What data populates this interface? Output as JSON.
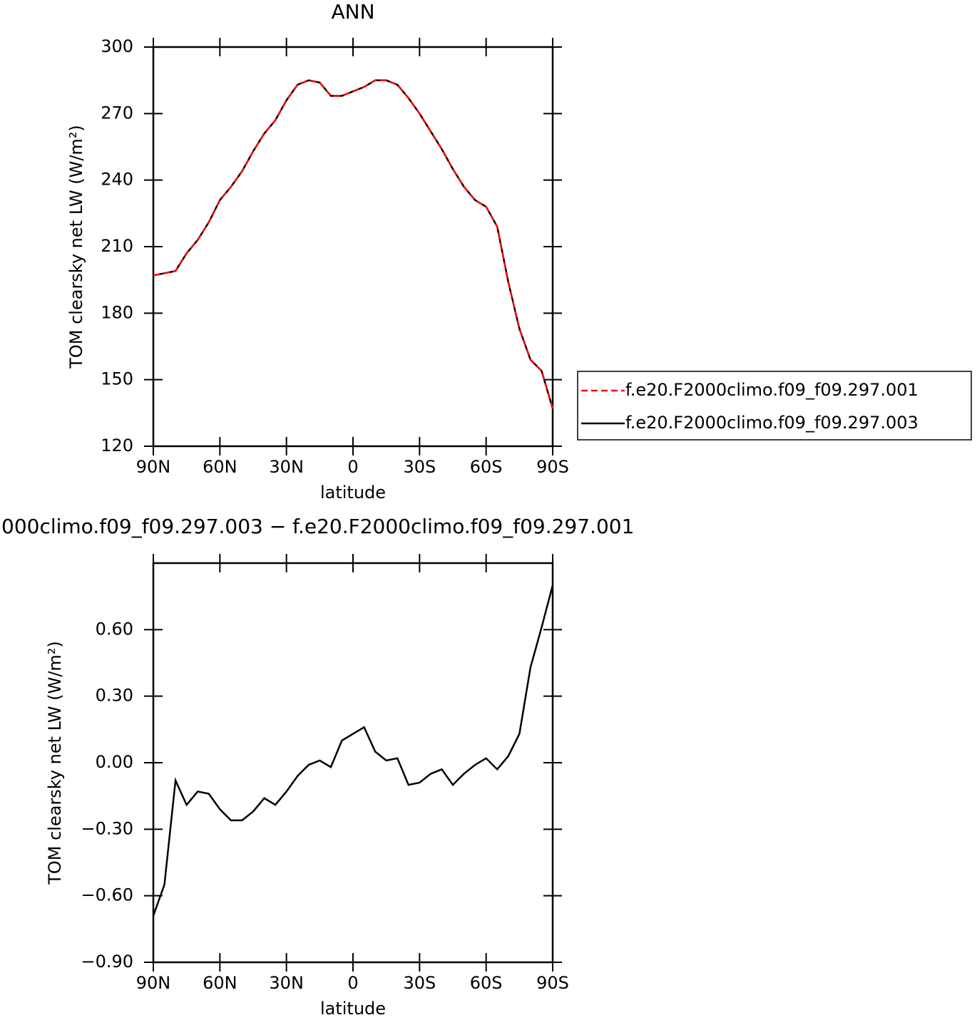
{
  "chart_data": [
    {
      "type": "line",
      "title": "ANN",
      "xlabel": "latitude",
      "ylabel": "TOM clearsky net LW (W/m²)",
      "x": [
        90,
        85,
        80,
        75,
        70,
        65,
        60,
        55,
        50,
        45,
        40,
        35,
        30,
        25,
        20,
        15,
        10,
        5,
        0,
        -5,
        -10,
        -15,
        -20,
        -25,
        -30,
        -35,
        -40,
        -45,
        -50,
        -55,
        -60,
        -65,
        -70,
        -75,
        -80,
        -85,
        -90
      ],
      "xlim": [
        90,
        -90
      ],
      "xticks": [
        {
          "value": 90,
          "label": "90N"
        },
        {
          "value": 60,
          "label": "60N"
        },
        {
          "value": 30,
          "label": "30N"
        },
        0,
        {
          "value": -30,
          "label": "30S"
        },
        {
          "value": -60,
          "label": "60S"
        },
        {
          "value": -90,
          "label": "90S"
        }
      ],
      "ylim": [
        120,
        300
      ],
      "yticks": [
        120,
        150,
        180,
        210,
        240,
        270,
        300
      ],
      "legend": "right",
      "series": [
        {
          "name": "f.e20.F2000climo.f09_f09.297.001",
          "color": "#ff0000",
          "linestyle": "dashed",
          "values": [
            197,
            198,
            199,
            207,
            213,
            221,
            231,
            237,
            244,
            253,
            261,
            267,
            276,
            283,
            285,
            284,
            278,
            278,
            280,
            282,
            285,
            285,
            283,
            277,
            270,
            262,
            254,
            245,
            237,
            231,
            228,
            219,
            194,
            173,
            159,
            154,
            137
          ]
        },
        {
          "name": "f.e20.F2000climo.f09_f09.297.003",
          "color": "#000000",
          "linestyle": "solid",
          "values": [
            197,
            198,
            199,
            207,
            213,
            221,
            231,
            237,
            244,
            253,
            261,
            267,
            276,
            283,
            285,
            284,
            278,
            278,
            280,
            282,
            285,
            285,
            283,
            277,
            270,
            262,
            254,
            245,
            237,
            231,
            228,
            219,
            194,
            173,
            159,
            154,
            137
          ]
        }
      ]
    },
    {
      "type": "line",
      "title": "000climo.f09_f09.297.003 − f.e20.F2000climo.f09_f09.297.001",
      "xlabel": "latitude",
      "ylabel": "TOM clearsky net LW (W/m²)",
      "x": [
        90,
        85,
        80,
        75,
        70,
        65,
        60,
        55,
        50,
        45,
        40,
        35,
        30,
        25,
        20,
        15,
        10,
        5,
        0,
        -5,
        -10,
        -15,
        -20,
        -25,
        -30,
        -35,
        -40,
        -45,
        -50,
        -55,
        -60,
        -65,
        -70,
        -75,
        -80,
        -85,
        -90
      ],
      "xlim": [
        90,
        -90
      ],
      "xticks": [
        {
          "value": 90,
          "label": "90N"
        },
        {
          "value": 60,
          "label": "60N"
        },
        {
          "value": 30,
          "label": "30N"
        },
        0,
        {
          "value": -30,
          "label": "30S"
        },
        {
          "value": -60,
          "label": "60S"
        },
        {
          "value": -90,
          "label": "90S"
        }
      ],
      "ylim": [
        -0.9,
        0.9
      ],
      "yticks": [
        {
          "value": -0.9,
          "label": "−0.90"
        },
        {
          "value": -0.6,
          "label": "−0.60"
        },
        {
          "value": -0.3,
          "label": "−0.30"
        },
        {
          "value": 0,
          "label": "0.00"
        },
        {
          "value": 0.3,
          "label": "0.30"
        },
        {
          "value": 0.6,
          "label": "0.60"
        }
      ],
      "color": "#000000",
      "values": [
        -0.69,
        -0.55,
        -0.08,
        -0.19,
        -0.13,
        -0.14,
        -0.21,
        -0.26,
        -0.26,
        -0.22,
        -0.16,
        -0.19,
        -0.13,
        -0.06,
        -0.01,
        0.01,
        -0.02,
        0.1,
        0.13,
        0.16,
        0.05,
        0.01,
        0.02,
        -0.1,
        -0.09,
        -0.05,
        -0.03,
        -0.1,
        -0.05,
        -0.01,
        0.02,
        -0.03,
        0.03,
        0.13,
        0.43,
        0.61,
        0.8
      ]
    }
  ]
}
